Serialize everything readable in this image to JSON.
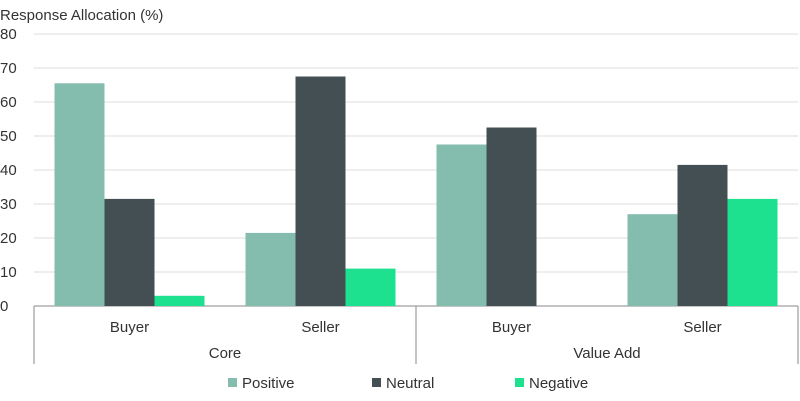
{
  "chart_data": {
    "type": "bar",
    "ylabel": "Response Allocation (%)",
    "ylim": [
      0,
      80
    ],
    "yticks": [
      0,
      10,
      20,
      30,
      40,
      50,
      60,
      70,
      80
    ],
    "grid": true,
    "legend_position": "bottom",
    "groups": [
      "Core",
      "Value Add"
    ],
    "categories": [
      "Buyer",
      "Seller",
      "Buyer",
      "Seller"
    ],
    "category_groups": [
      0,
      0,
      1,
      1
    ],
    "series": [
      {
        "name": "Positive",
        "color": "#84bcae",
        "values": [
          65.5,
          21.5,
          47.5,
          27
        ]
      },
      {
        "name": "Neutral",
        "color": "#444f53",
        "values": [
          31.5,
          67.5,
          52.5,
          41.5
        ]
      },
      {
        "name": "Negative",
        "color": "#1de18f",
        "values": [
          3,
          11,
          0,
          31.5
        ]
      }
    ]
  }
}
